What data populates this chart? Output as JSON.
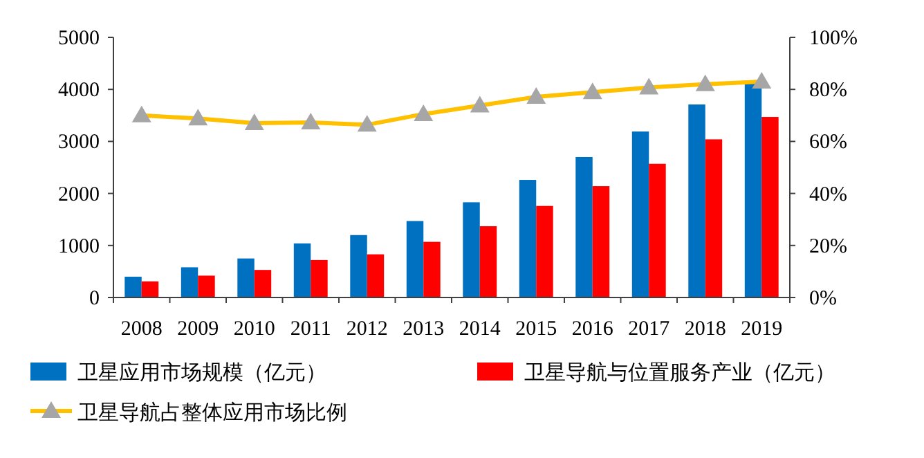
{
  "chart_data": {
    "type": "bar",
    "categories": [
      "2008",
      "2009",
      "2010",
      "2011",
      "2012",
      "2013",
      "2014",
      "2015",
      "2016",
      "2017",
      "2018",
      "2019"
    ],
    "series": [
      {
        "name": "卫星应用市场规模（亿元）",
        "color": "#0070c0",
        "values": [
          400,
          580,
          750,
          1040,
          1200,
          1470,
          1830,
          2260,
          2700,
          3190,
          3710,
          4120
        ]
      },
      {
        "name": "卫星导航与位置服务产业（亿元）",
        "color": "#ff0000",
        "values": [
          310,
          420,
          530,
          720,
          830,
          1070,
          1370,
          1760,
          2140,
          2570,
          3040,
          3470
        ]
      },
      {
        "name": "卫星导航占整体应用市场比例",
        "type": "line",
        "axis": "y2",
        "color": "#ffc000",
        "marker": "triangle",
        "values": [
          70.0,
          68.8,
          67.0,
          67.3,
          66.4,
          70.5,
          73.8,
          77.1,
          78.9,
          80.7,
          82.0,
          83.0
        ]
      }
    ],
    "ylim": [
      0,
      5000
    ],
    "yticks": [
      0,
      1000,
      2000,
      3000,
      4000,
      5000
    ],
    "y2lim": [
      0,
      100
    ],
    "y2ticks": [
      {
        "value": 0,
        "label": "0%"
      },
      {
        "value": 20,
        "label": "20%"
      },
      {
        "value": 40,
        "label": "40%"
      },
      {
        "value": 60,
        "label": "60%"
      },
      {
        "value": 80,
        "label": "80%"
      },
      {
        "value": 100,
        "label": "100%"
      }
    ],
    "legend": "bottom",
    "grid": false
  }
}
